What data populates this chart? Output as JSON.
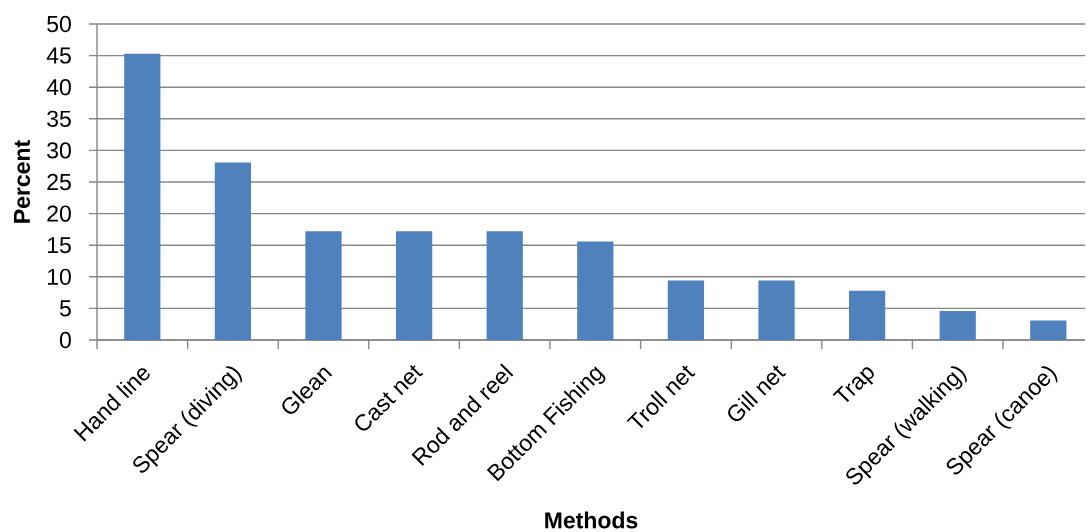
{
  "chart_data": {
    "type": "bar",
    "xlabel": "Methods",
    "ylabel": "Percent",
    "categories": [
      "Hand line",
      "Spear (diving)",
      "Glean",
      "Cast net",
      "Rod and reel",
      "Bottom Fishing",
      "Troll net",
      "Gill net",
      "Trap",
      "Spear (walking)",
      "Spear (canoe)"
    ],
    "values": [
      45.3,
      28.1,
      17.2,
      17.2,
      17.2,
      15.6,
      9.4,
      9.4,
      7.8,
      4.6,
      3.1
    ],
    "color": "#4f81bd",
    "ylim": [
      0,
      50
    ],
    "yticks": [
      0,
      5,
      10,
      15,
      20,
      25,
      30,
      35,
      40,
      45,
      50
    ],
    "grid": "y"
  }
}
